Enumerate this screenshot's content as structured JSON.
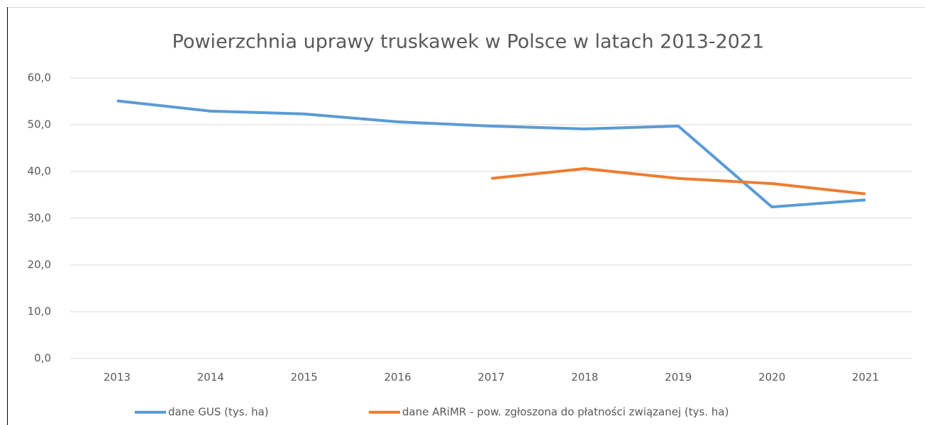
{
  "chart_data": {
    "type": "line",
    "title": "Powierzchnia uprawy truskawek w Polsce  w latach 2013-2021",
    "categories": [
      "2013",
      "2014",
      "2015",
      "2016",
      "2017",
      "2018",
      "2019",
      "2020",
      "2021"
    ],
    "series": [
      {
        "name": "dane GUS (tys. ha)",
        "color": "#5b9bd5",
        "values": [
          55.1,
          52.9,
          52.3,
          50.6,
          49.7,
          49.1,
          49.7,
          32.4,
          33.9
        ]
      },
      {
        "name": "dane ARiMR - pow. zgłoszona do płatności związanej (tys. ha)",
        "color": "#ed7d31",
        "values": [
          null,
          null,
          null,
          null,
          38.5,
          40.6,
          38.5,
          37.4,
          35.2
        ]
      }
    ],
    "ylim": [
      0,
      60
    ],
    "yticks": [
      {
        "value": 0,
        "label": "0,0"
      },
      {
        "value": 10,
        "label": "10,0"
      },
      {
        "value": 20,
        "label": "20,0"
      },
      {
        "value": 30,
        "label": "30,0"
      },
      {
        "value": 40,
        "label": "40,0"
      },
      {
        "value": 50,
        "label": "50,0"
      },
      {
        "value": 60,
        "label": "60,0"
      }
    ],
    "grid": true,
    "legend": "bottom"
  }
}
